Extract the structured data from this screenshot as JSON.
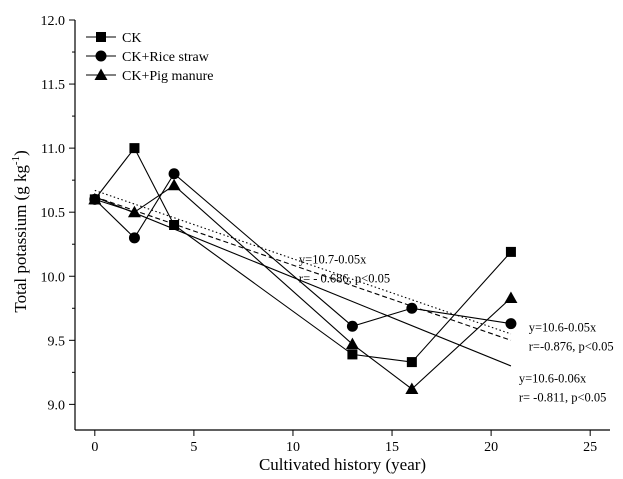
{
  "chart_data": {
    "type": "line",
    "xlabel": "Cultivated history (year)",
    "ylabel": "Total potassium (g kg",
    "ylabel_sup": "-1",
    "ylabel_close": ")",
    "xlim": [
      -1,
      26
    ],
    "ylim": [
      8.8,
      12.0
    ],
    "xticks": [
      0,
      5,
      10,
      15,
      20,
      25
    ],
    "yticks": [
      9.0,
      9.5,
      10.0,
      10.5,
      11.0,
      11.5,
      12.0
    ],
    "yticks_labels": [
      "9.0",
      "9.5",
      "10.0",
      "10.5",
      "11.0",
      "11.5",
      "12.0"
    ],
    "legend_placement": "top-left",
    "series": [
      {
        "name": "CK",
        "marker": "square",
        "x": [
          0,
          2,
          4,
          13,
          16,
          21
        ],
        "values": [
          10.6,
          11.0,
          10.4,
          9.39,
          9.33,
          10.19
        ]
      },
      {
        "name": "CK+Rice straw",
        "marker": "circle",
        "x": [
          0,
          2,
          4,
          13,
          16,
          21
        ],
        "values": [
          10.6,
          10.3,
          10.8,
          9.61,
          9.75,
          9.63
        ]
      },
      {
        "name": "CK+Pig manure",
        "marker": "triangle",
        "x": [
          0,
          2,
          4,
          13,
          16,
          21
        ],
        "values": [
          10.6,
          10.5,
          10.71,
          9.47,
          9.12,
          9.83
        ]
      }
    ],
    "fits": [
      {
        "style": "dotted",
        "x": [
          0,
          21
        ],
        "values": [
          10.67,
          9.55
        ]
      },
      {
        "style": "dashed",
        "x": [
          0,
          21
        ],
        "values": [
          10.62,
          9.5
        ]
      },
      {
        "style": "solid",
        "x": [
          0,
          21
        ],
        "values": [
          10.62,
          9.3
        ]
      }
    ],
    "annotations": [
      {
        "line1": "y=10.7-0.05x",
        "line2": "r= - 0.686, p<0.05",
        "x": 10.3,
        "y": 10.1
      },
      {
        "line1": "y=10.6-0.05x",
        "line2": "r=-0.876, p<0.05",
        "x": 21.9,
        "y": 9.57
      },
      {
        "line1": "y=10.6-0.06x",
        "line2": "r= -0.811, p<0.05",
        "x": 21.4,
        "y": 9.17
      }
    ]
  }
}
